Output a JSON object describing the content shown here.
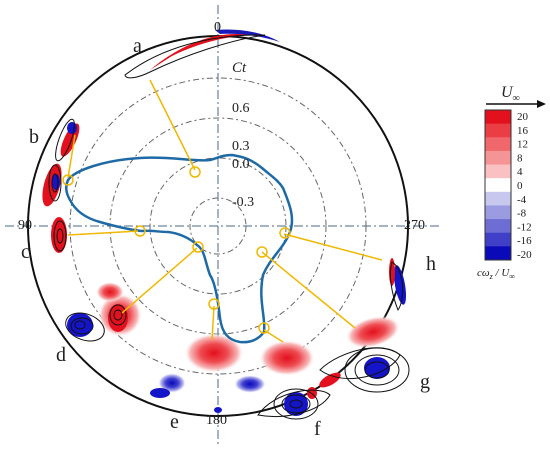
{
  "polar": {
    "radial_label": "Ct",
    "radial_ticks": [
      "0.6",
      "0.3",
      "0.0",
      "-0.3"
    ],
    "angle_labels": {
      "top": "0",
      "left": "90",
      "bottom": "180",
      "right": "270"
    }
  },
  "blade_labels": [
    "a",
    "b",
    "c",
    "d",
    "e",
    "f",
    "g",
    "h"
  ],
  "colorbar": {
    "title": "U",
    "title_sub": "∞",
    "ticks": [
      "20",
      "16",
      "12",
      "8",
      "4",
      "0",
      "-4",
      "-8",
      "-12",
      "-16",
      "-20"
    ],
    "colors": [
      "#e3101d",
      "#ea3d44",
      "#f0686b",
      "#f59495",
      "#f9c1c1",
      "#ffffff",
      "#c8c8ef",
      "#9b9be2",
      "#6d6dd4",
      "#3f3fc7",
      "#0a0ab8"
    ],
    "unit_label": "cω",
    "unit_sub": "z",
    "unit_denom": "U",
    "unit_denom_sub": "∞"
  },
  "colors": {
    "curve": "#1e6aa6",
    "leader": "#f0b800",
    "positive_vorticity": "#e3101d",
    "negative_vorticity": "#1414c8",
    "grid": "#555555"
  }
}
